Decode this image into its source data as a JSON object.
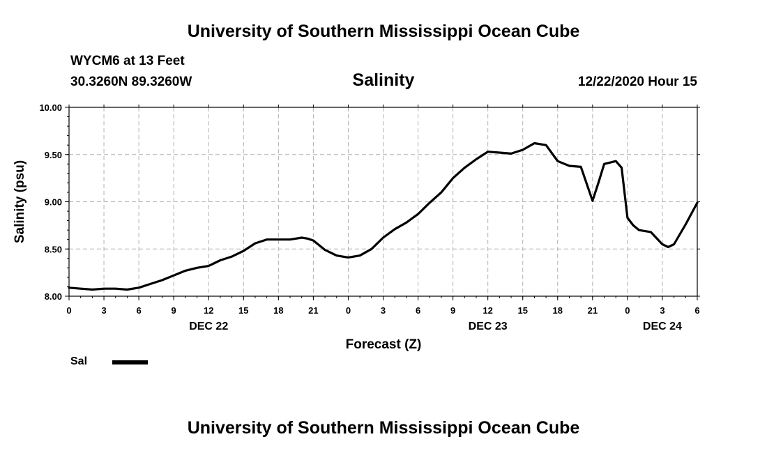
{
  "header": {
    "top_title": "University of Southern Mississippi Ocean Cube",
    "station": "WYCM6 at 13 Feet",
    "coords": "30.3260N 89.3260W",
    "chart_title": "Salinity",
    "datetime": "12/22/2020 Hour 15"
  },
  "footer": {
    "bottom_title": "University of Southern Mississippi Ocean Cube"
  },
  "legend": {
    "label": "Sal",
    "color": "#000000"
  },
  "chart_data": {
    "type": "line",
    "title": "Salinity",
    "xlabel": "Forecast (Z)",
    "ylabel": "Salinity (psu)",
    "xlim": [
      0,
      54
    ],
    "ylim": [
      8.0,
      10.0
    ],
    "y_ticks": [
      "8.00",
      "8.50",
      "9.00",
      "9.50",
      "10.00"
    ],
    "x_ticks": [
      "0",
      "3",
      "6",
      "9",
      "12",
      "15",
      "18",
      "21",
      "0",
      "3",
      "6",
      "9",
      "12",
      "15",
      "18",
      "21",
      "0",
      "3",
      "6"
    ],
    "day_labels": [
      "DEC 22",
      "DEC 23",
      "DEC 24"
    ],
    "grid": true,
    "series": [
      {
        "name": "Sal",
        "color": "#000000",
        "x": [
          0,
          1,
          2,
          3,
          4,
          5,
          6,
          7,
          8,
          9,
          10,
          11,
          12,
          13,
          14,
          15,
          16,
          17,
          18,
          19,
          20,
          20.5,
          21,
          22,
          23,
          24,
          25,
          26,
          27,
          28,
          29,
          30,
          31,
          32,
          33,
          34,
          35,
          36,
          37,
          38,
          39,
          40,
          41,
          42,
          43,
          44,
          45,
          45.5,
          46,
          47,
          47.5,
          48,
          48.5,
          49,
          50,
          51,
          51.5,
          52,
          53,
          54
        ],
        "y": [
          8.09,
          8.08,
          8.07,
          8.08,
          8.08,
          8.07,
          8.09,
          8.13,
          8.17,
          8.22,
          8.27,
          8.3,
          8.32,
          8.38,
          8.42,
          8.48,
          8.56,
          8.6,
          8.6,
          8.6,
          8.62,
          8.61,
          8.59,
          8.49,
          8.43,
          8.41,
          8.43,
          8.5,
          8.62,
          8.71,
          8.78,
          8.87,
          8.99,
          9.1,
          9.25,
          9.36,
          9.45,
          9.53,
          9.52,
          9.51,
          9.55,
          9.62,
          9.6,
          9.43,
          9.38,
          9.37,
          9.01,
          9.2,
          9.4,
          9.43,
          9.36,
          8.83,
          8.75,
          8.7,
          8.68,
          8.55,
          8.52,
          8.55,
          8.76,
          8.99
        ]
      }
    ]
  }
}
